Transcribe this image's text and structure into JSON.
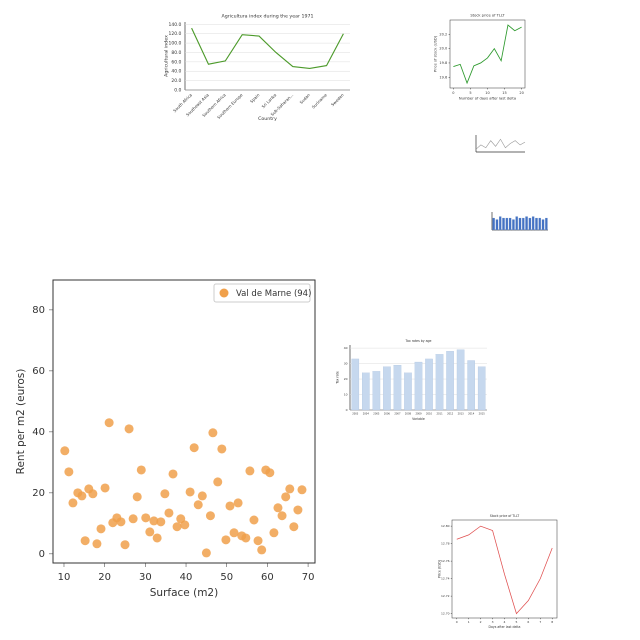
{
  "chart_data": [
    {
      "type": "line",
      "title": "Agricultura index during the year 1971",
      "xlabel": "Country",
      "ylabel": "Agricultural index",
      "categories": [
        "South Africa",
        "Southeast Asia",
        "Southern Africa",
        "Southern Europe",
        "Spain",
        "Sri Lanka",
        "Sub-Saharan...",
        "Sudan",
        "Suriname",
        "Sweden"
      ],
      "values": [
        132,
        55,
        62,
        118,
        115,
        80,
        50,
        46,
        52,
        120
      ],
      "color": "#4c9a2a",
      "ylim": [
        0,
        145
      ],
      "yticks": [
        {
          "value": 0,
          "label": "0.0"
        },
        {
          "value": 20,
          "label": "20.0"
        },
        {
          "value": 40,
          "label": "40.0"
        },
        {
          "value": 60,
          "label": "60.0"
        },
        {
          "value": 80,
          "label": "80.0"
        },
        {
          "value": 100,
          "label": "100.0"
        },
        {
          "value": 120,
          "label": "120.0"
        },
        {
          "value": 140,
          "label": "140.0"
        }
      ],
      "grid": true
    },
    {
      "type": "line",
      "title": "Stock price of TLLT",
      "xlabel": "Number of days after last delta",
      "ylabel": "Price of stock (USD)",
      "x": [
        0,
        2,
        4,
        6,
        8,
        10,
        12,
        14,
        16,
        18,
        20
      ],
      "values": [
        19.75,
        19.78,
        19.52,
        19.76,
        19.8,
        19.87,
        20.0,
        19.83,
        20.33,
        20.25,
        20.3
      ],
      "color": "#2e9a2e",
      "xlim": [
        -1,
        21
      ],
      "xticks": [
        0,
        5,
        10,
        15,
        20
      ],
      "ylim": [
        19.45,
        20.4
      ],
      "yticks": [
        19.6,
        19.8,
        {
          "value": 20,
          "label": "20.0"
        },
        20.2
      ],
      "grid": false
    },
    {
      "type": "line",
      "x": [
        0,
        1,
        2,
        3,
        4,
        5,
        6,
        7,
        8,
        9,
        10
      ],
      "values": [
        2,
        5,
        3,
        8,
        4,
        9,
        3,
        6,
        8,
        5,
        7
      ],
      "color": "#999999",
      "xlim": [
        0,
        10
      ],
      "ylim": [
        0,
        12
      ],
      "grid": false
    },
    {
      "type": "bar",
      "categories": [
        null,
        null,
        null,
        null,
        null,
        null,
        null,
        null,
        null,
        null,
        null,
        null,
        null,
        null,
        null,
        null,
        null
      ],
      "values": [
        8,
        7,
        9,
        8,
        8,
        8,
        7,
        9,
        8,
        8,
        9,
        8,
        9,
        8,
        8,
        7,
        8
      ],
      "color": "#4472c4",
      "ylim": [
        0,
        12
      ],
      "grid": false
    },
    {
      "type": "scatter",
      "xlabel": "Surface (m2)",
      "ylabel": "Rent per m2 (euros)",
      "series": [
        {
          "name": "Val de Marne (94)",
          "color": "#f0a04b",
          "x": [
            10.2,
            11.2,
            12.2,
            13.4,
            14.4,
            15.2,
            16.1,
            17.1,
            18.1,
            19.1,
            20.1,
            21.1,
            22,
            23,
            24,
            25,
            26,
            27,
            28,
            29,
            30.1,
            31.1,
            32.1,
            32.9,
            33.8,
            34.8,
            35.8,
            36.8,
            37.8,
            38.7,
            39.7,
            41,
            42,
            43,
            44,
            45,
            46,
            46.6,
            47.8,
            48.8,
            49.8,
            50.8,
            51.8,
            52.8,
            53.7,
            54.7,
            55.7,
            56.7,
            57.7,
            58.6,
            59.6,
            60.6,
            61.6,
            62.6,
            63.6,
            64.5,
            65.5,
            66.5,
            67.5,
            68.5
          ],
          "values": [
            33.8,
            26.9,
            16.7,
            20,
            19,
            4.3,
            21.3,
            19.7,
            3.3,
            8.2,
            21.6,
            43,
            10.2,
            11.8,
            10.5,
            3,
            41,
            11.5,
            18.7,
            27.5,
            11.8,
            7.2,
            10.8,
            5.2,
            10.5,
            19.7,
            13.4,
            26.2,
            8.9,
            11.5,
            9.5,
            20.3,
            34.8,
            16.1,
            19,
            0.3,
            12.5,
            39.7,
            23.6,
            34.4,
            4.6,
            15.7,
            6.9,
            16.7,
            5.9,
            5.2,
            27.2,
            11.1,
            4.3,
            1.3,
            27.5,
            26.6,
            6.9,
            15.1,
            12.5,
            18.7,
            21.3,
            8.9,
            14.4,
            21
          ]
        }
      ],
      "xlim": [
        7.3,
        71.7
      ],
      "xticks": [
        10,
        20,
        30,
        40,
        50,
        60,
        70
      ],
      "ylim": [
        -3,
        89.8
      ],
      "yticks": [
        0,
        20,
        40,
        60,
        80
      ],
      "legend": "upper right",
      "grid": false
    },
    {
      "type": "bar",
      "title": "Tax rates by age",
      "xlabel": "Variable",
      "ylabel": "Tax rate",
      "categories": [
        "2003",
        "2004",
        "2005",
        "2006",
        "2007",
        "2008",
        "2009",
        "2010",
        "2011",
        "2012",
        "2013",
        "2014",
        "2015"
      ],
      "values": [
        33,
        24,
        25,
        28,
        29,
        24,
        31,
        33,
        36,
        38,
        39,
        32,
        28
      ],
      "color": "#c6d8ee",
      "ylim": [
        0,
        42
      ],
      "yticks": [
        0,
        10,
        20,
        30,
        40
      ],
      "grid": true
    },
    {
      "type": "line",
      "title": "Stock price of TLLT",
      "xlabel": "Days after last delta",
      "ylabel": "Price (USD)",
      "x": [
        0,
        1,
        2,
        3,
        4,
        5,
        6,
        7,
        8
      ],
      "values": [
        12.785,
        12.79,
        12.8,
        12.795,
        12.745,
        12.7,
        12.715,
        12.74,
        12.775
      ],
      "color": "#e05050",
      "xlim": [
        -0.4,
        8.4
      ],
      "xticks": [
        0,
        1,
        2,
        3,
        4,
        5,
        6,
        7,
        8
      ],
      "ylim": [
        12.695,
        12.807
      ],
      "yticks": [
        {
          "value": 12.7,
          "label": "12.70"
        },
        12.72,
        12.74,
        12.76,
        12.78,
        {
          "value": 12.8,
          "label": "12.80"
        }
      ],
      "grid": false
    }
  ]
}
